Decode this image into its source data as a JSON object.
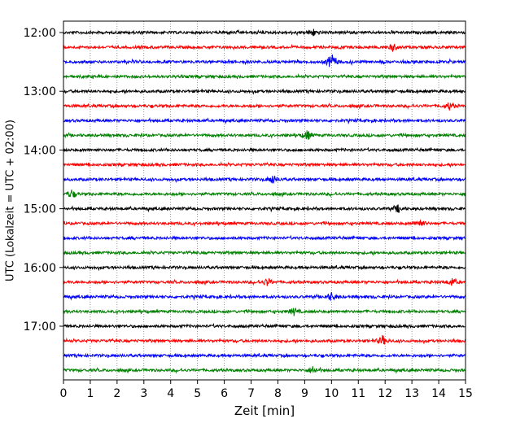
{
  "chart_data": {
    "type": "line",
    "title": "",
    "xlabel": "Zeit  [min]",
    "ylabel": "UTC (Lokalzeit = UTC + 02:00)",
    "xlim": [
      0,
      15
    ],
    "x_ticks": [
      "0",
      "1",
      "2",
      "3",
      "4",
      "5",
      "6",
      "7",
      "8",
      "9",
      "10",
      "11",
      "12",
      "13",
      "14",
      "15"
    ],
    "y_ticks": [
      "12:00",
      "13:00",
      "14:00",
      "15:00",
      "16:00",
      "17:00"
    ],
    "trace_interval_minutes": 15,
    "grid": "vertical dotted",
    "colors": [
      "#000000",
      "#ff0000",
      "#0000ff",
      "#008000"
    ],
    "traces": [
      {
        "start": "12:00",
        "color": "#000000"
      },
      {
        "start": "12:15",
        "color": "#ff0000"
      },
      {
        "start": "12:30",
        "color": "#0000ff"
      },
      {
        "start": "12:45",
        "color": "#008000"
      },
      {
        "start": "13:00",
        "color": "#000000"
      },
      {
        "start": "13:15",
        "color": "#ff0000"
      },
      {
        "start": "13:30",
        "color": "#0000ff"
      },
      {
        "start": "13:45",
        "color": "#008000"
      },
      {
        "start": "14:00",
        "color": "#000000"
      },
      {
        "start": "14:15",
        "color": "#ff0000"
      },
      {
        "start": "14:30",
        "color": "#0000ff"
      },
      {
        "start": "14:45",
        "color": "#008000"
      },
      {
        "start": "15:00",
        "color": "#000000"
      },
      {
        "start": "15:15",
        "color": "#ff0000"
      },
      {
        "start": "15:30",
        "color": "#0000ff"
      },
      {
        "start": "15:45",
        "color": "#008000"
      },
      {
        "start": "16:00",
        "color": "#000000"
      },
      {
        "start": "16:15",
        "color": "#ff0000"
      },
      {
        "start": "16:30",
        "color": "#0000ff"
      },
      {
        "start": "16:45",
        "color": "#008000"
      },
      {
        "start": "17:00",
        "color": "#000000"
      },
      {
        "start": "17:15",
        "color": "#ff0000"
      },
      {
        "start": "17:30",
        "color": "#0000ff"
      },
      {
        "start": "17:45",
        "color": "#008000"
      }
    ],
    "events": [
      {
        "trace": "12:30",
        "minute": 10.0,
        "amplitude": 2.2
      },
      {
        "trace": "12:00",
        "minute": 9.3,
        "amplitude": 1.0
      },
      {
        "trace": "12:15",
        "minute": 12.3,
        "amplitude": 0.9
      },
      {
        "trace": "13:45",
        "minute": 9.1,
        "amplitude": 1.2
      },
      {
        "trace": "14:30",
        "minute": 7.8,
        "amplitude": 1.2
      },
      {
        "trace": "14:45",
        "minute": 0.3,
        "amplitude": 1.0
      },
      {
        "trace": "15:15",
        "minute": 13.3,
        "amplitude": 1.1
      },
      {
        "trace": "16:15",
        "minute": 7.6,
        "amplitude": 1.0
      },
      {
        "trace": "16:15",
        "minute": 14.5,
        "amplitude": 1.0
      },
      {
        "trace": "16:30",
        "minute": 10.0,
        "amplitude": 1.0
      },
      {
        "trace": "16:45",
        "minute": 8.6,
        "amplitude": 0.9
      },
      {
        "trace": "17:15",
        "minute": 11.9,
        "amplitude": 1.3
      },
      {
        "trace": "17:45",
        "minute": 9.3,
        "amplitude": 1.0
      },
      {
        "trace": "13:15",
        "minute": 14.4,
        "amplitude": 0.9
      },
      {
        "trace": "15:00",
        "minute": 12.5,
        "amplitude": 0.9
      }
    ]
  }
}
